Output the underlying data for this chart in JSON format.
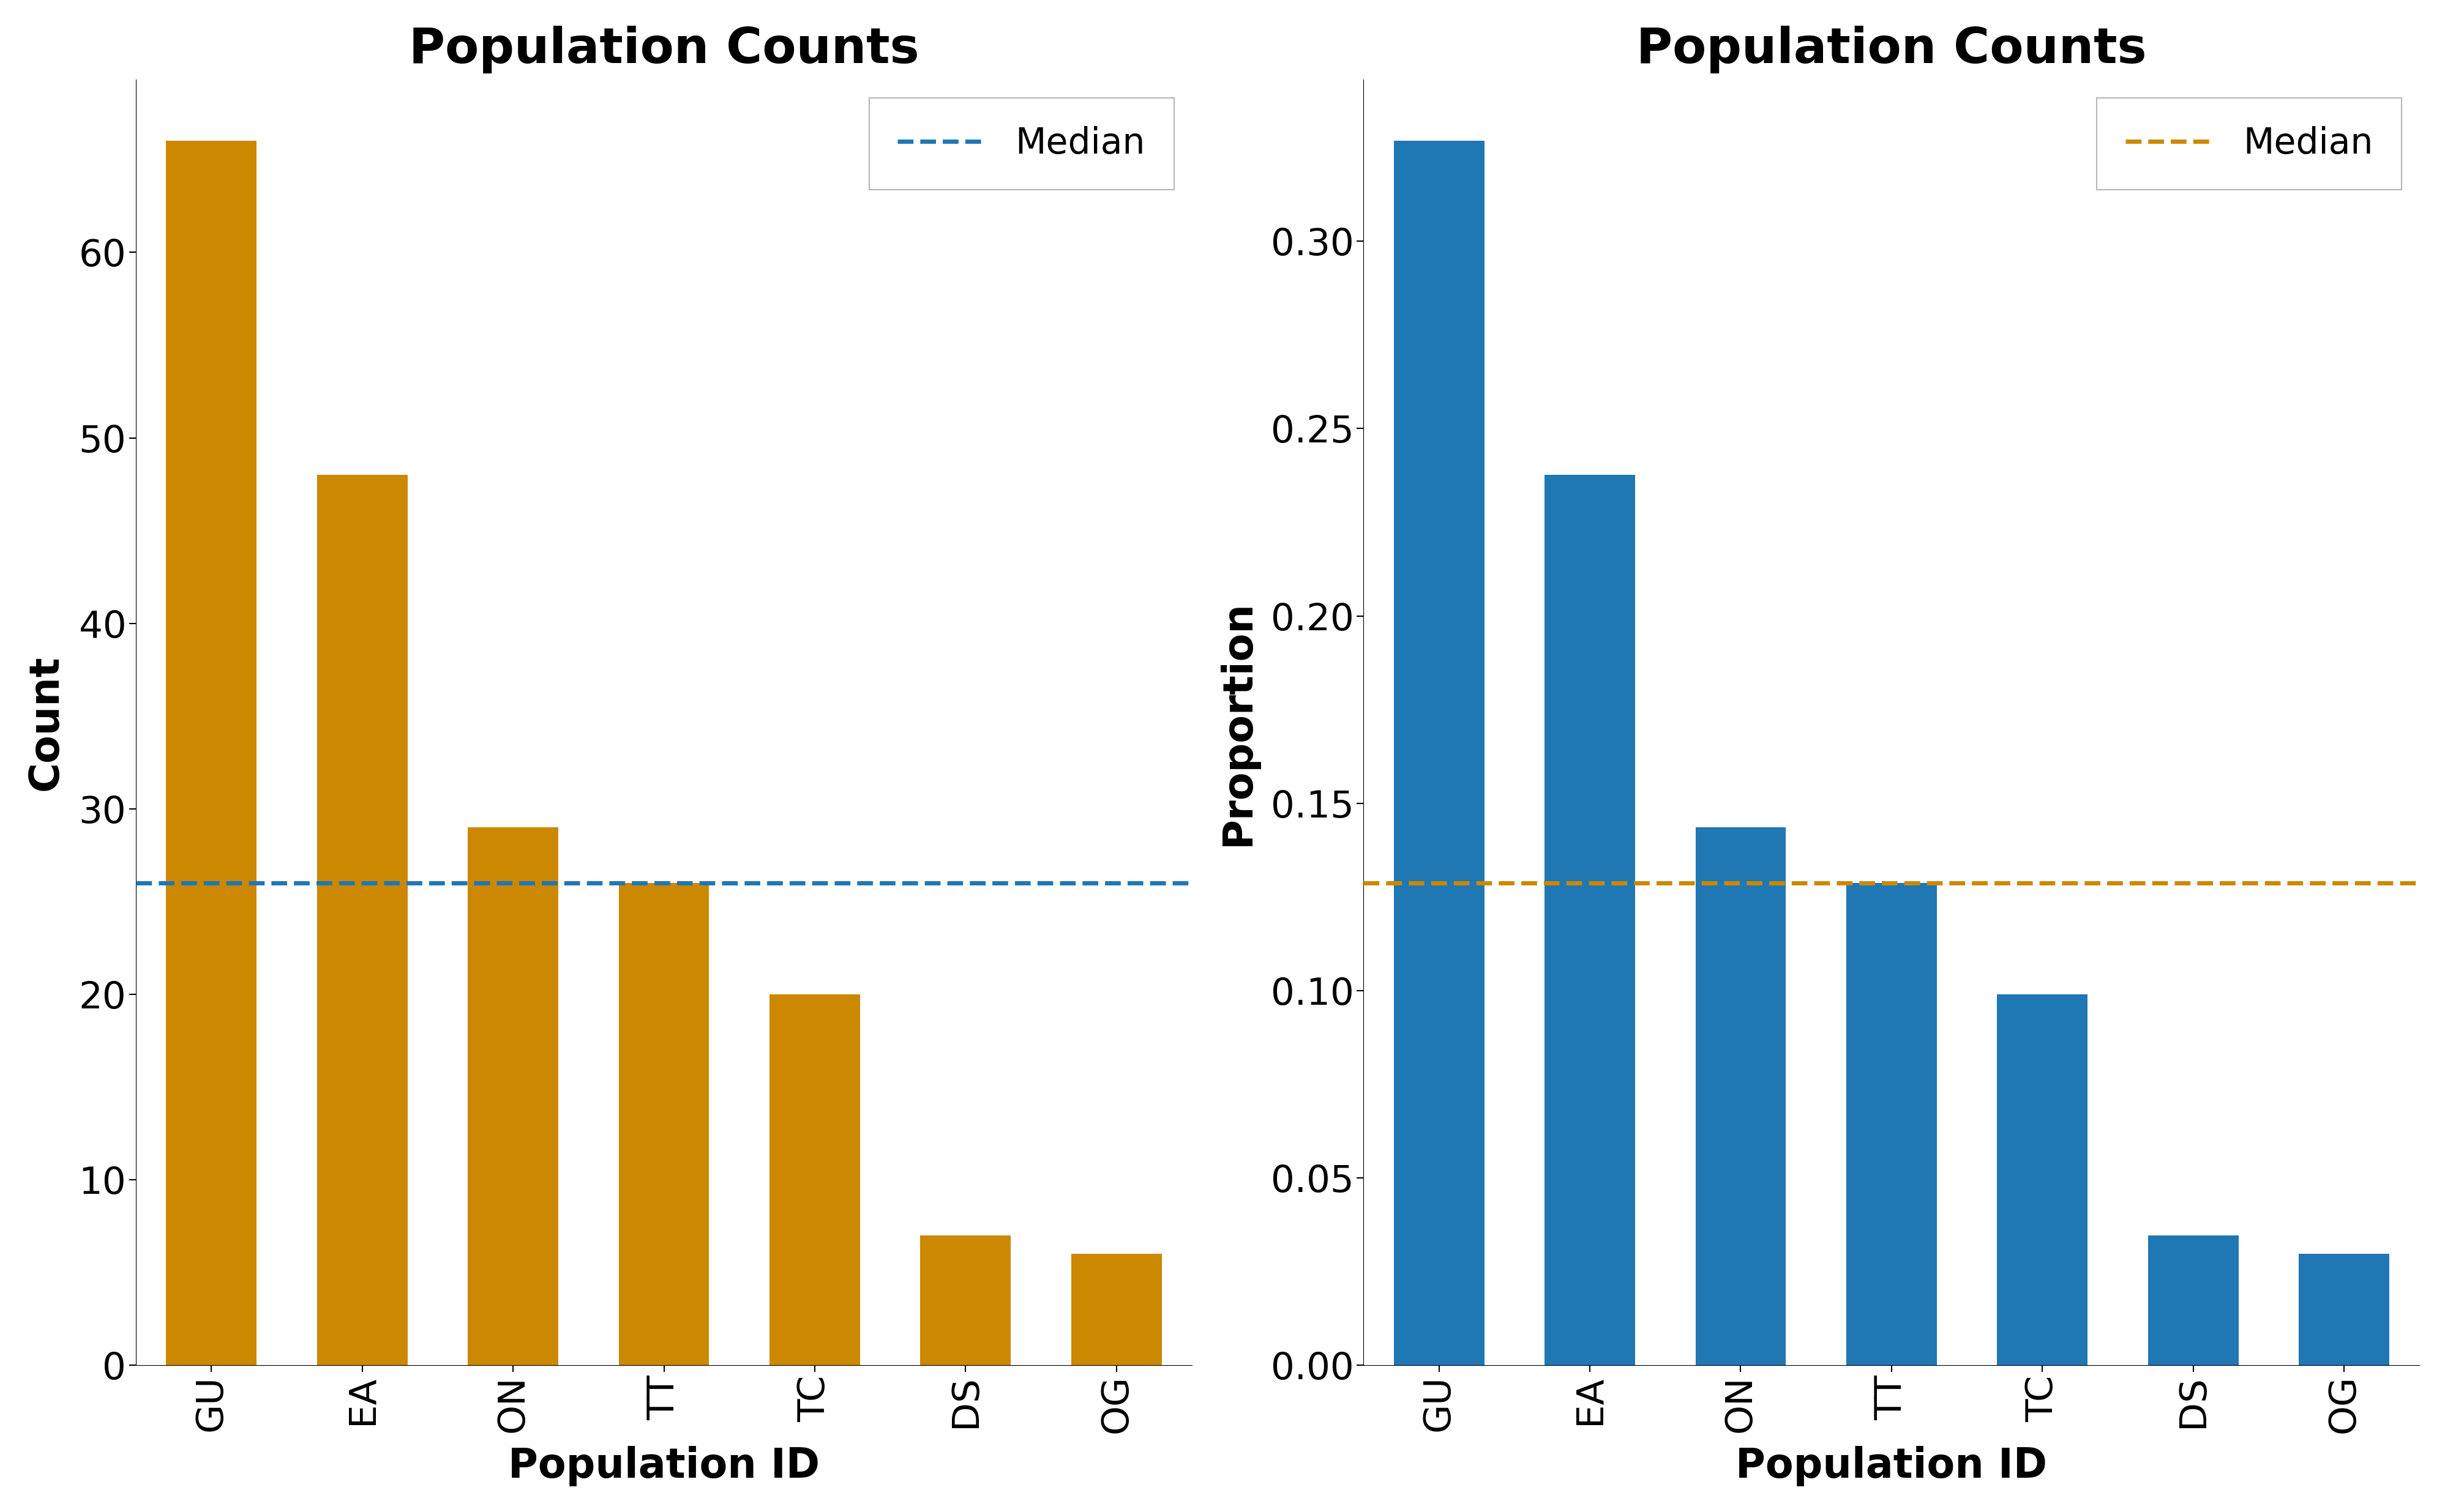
{
  "categories": [
    "GU",
    "EA",
    "ON",
    "TT",
    "TC",
    "DS",
    "OG"
  ],
  "counts": [
    66,
    48,
    29,
    26,
    20,
    7,
    6
  ],
  "proportions": [
    0.32673,
    0.23762,
    0.14356,
    0.12871,
    0.09901,
    0.03465,
    0.0297
  ],
  "count_median": 26.0,
  "proportion_median": 0.12871,
  "bar_color_left": "#CC8800",
  "bar_color_right": "#1F77B4",
  "median_color_left": "#1F77B4",
  "median_color_right": "#CC8800",
  "title_left": "Population Counts",
  "title_right": "Population Counts",
  "xlabel": "Population ID",
  "ylabel_left": "Count",
  "ylabel_right": "Proportion",
  "title_fontsize": 58,
  "label_fontsize": 48,
  "tick_fontsize": 44,
  "legend_fontsize": 42,
  "linewidth_median": 5.0
}
